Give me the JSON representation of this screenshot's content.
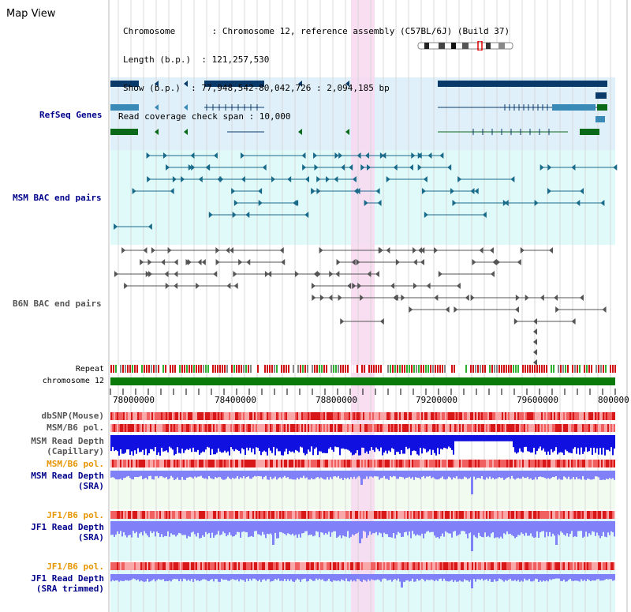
{
  "app": {
    "title": "Map View"
  },
  "info": {
    "chromosome": "Chromosome       : Chromosome 12, reference assembly (C57BL/6J) (Build 37)",
    "length": "Length (b.p.)  : 121,257,530",
    "show": "Show (b.p.)  : 77,948,542-80,042,726 : 2,094,185 bp",
    "coverage": "Read coverage check span : 10,000"
  },
  "tracks": {
    "refseq": "RefSeq Genes",
    "msm_bac": "MSM BAC end pairs",
    "b6n_bac": "B6N BAC end pairs",
    "repeat": "Repeat",
    "chromosome": "chromosome 12",
    "dbsnp": "dbSNP(Mouse)",
    "msm_b6_pol_1": "MSM/B6 pol.",
    "msm_depth_cap_1": "MSM Read Depth",
    "msm_depth_cap_2": "(Capillary)",
    "msm_b6_pol_2": "MSM/B6 pol.",
    "msm_depth_sra_1": "MSM Read Depth",
    "msm_depth_sra_2": "(SRA)",
    "jf1_b6_pol_1": "JF1/B6 pol.",
    "jf1_depth_sra_1": "JF1 Read Depth",
    "jf1_depth_sra_2": "(SRA)",
    "jf1_b6_pol_2": "JF1/B6 pol.",
    "jf1_depth_trim_1": "JF1 Read Depth",
    "jf1_depth_trim_2": "(SRA trimmed)"
  },
  "axis": {
    "ticks": [
      "78000000",
      "78400000",
      "78800000",
      "79200000",
      "79600000",
      "800000"
    ]
  },
  "colors": {
    "refseq_bg": "#e0f0fa",
    "bac_bg": "#e0fafa",
    "highlight": "#f8d8f0",
    "gene_dark": "#0a3a6a",
    "gene_mid": "#3a8ab8",
    "gene_green": "#0a6a1a",
    "msm_bac": "#1a6a8a",
    "b6n_bac": "#555555",
    "chromosome": "#0a7a0a",
    "snp_red": "#e84040",
    "depth_blue": "#1010e0",
    "depth_violet": "#8080f8"
  }
}
